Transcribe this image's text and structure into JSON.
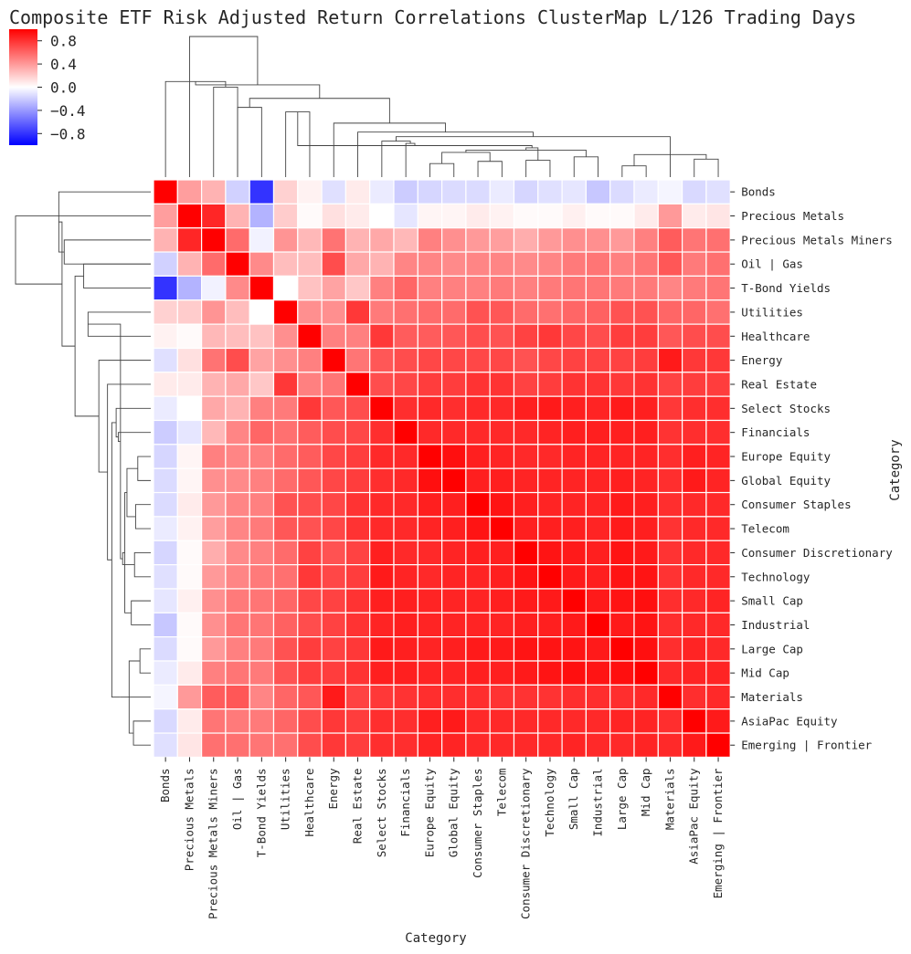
{
  "chart_data": {
    "type": "heatmap",
    "title": "Composite ETF Risk Adjusted Return Correlations ClusterMap L/126 Trading Days",
    "xlabel": "Category",
    "ylabel": "Category",
    "categories": [
      "Bonds",
      "Precious Metals",
      "Precious Metals Miners",
      "Oil | Gas",
      "T-Bond Yields",
      "Utilities",
      "Healthcare",
      "Energy",
      "Real Estate",
      "Select Stocks",
      "Financials",
      "Europe Equity",
      "Global Equity",
      "Consumer Staples",
      "Telecom",
      "Consumer Discretionary",
      "Technology",
      "Small Cap",
      "Industrial",
      "Large Cap",
      "Mid Cap",
      "Materials",
      "AsiaPac Equity",
      "Emerging | Frontier"
    ],
    "colorbar": {
      "vmin": -1.0,
      "vmax": 1.0,
      "ticks": [
        0.8,
        0.4,
        0.0,
        -0.4,
        -0.8
      ],
      "tick_labels": [
        "0.8",
        "0.4",
        "0.0",
        "−0.4",
        "−0.8"
      ],
      "colormap": "bwr",
      "low_color": "#0000ff",
      "mid_color": "#ffffff",
      "high_color": "#ff0000"
    },
    "grid_line_color": "#ffffff",
    "dendrogram_line_color": "#444444",
    "values": [
      [
        1.0,
        0.38,
        0.3,
        -0.18,
        -0.8,
        0.18,
        0.05,
        -0.12,
        0.08,
        -0.08,
        -0.2,
        -0.16,
        -0.14,
        -0.14,
        -0.08,
        -0.16,
        -0.12,
        -0.1,
        -0.22,
        -0.14,
        -0.08,
        -0.04,
        -0.15,
        -0.12
      ],
      [
        0.38,
        1.0,
        0.85,
        0.3,
        -0.3,
        0.2,
        0.02,
        0.12,
        0.08,
        0.0,
        -0.1,
        0.04,
        0.04,
        0.08,
        0.05,
        0.02,
        0.02,
        0.06,
        0.02,
        0.02,
        0.08,
        0.4,
        0.08,
        0.1
      ],
      [
        0.3,
        0.85,
        1.0,
        0.58,
        -0.05,
        0.42,
        0.28,
        0.55,
        0.3,
        0.34,
        0.28,
        0.5,
        0.44,
        0.4,
        0.38,
        0.32,
        0.4,
        0.44,
        0.44,
        0.4,
        0.5,
        0.64,
        0.54,
        0.56
      ],
      [
        -0.18,
        0.3,
        0.58,
        1.0,
        0.46,
        0.26,
        0.26,
        0.7,
        0.34,
        0.3,
        0.48,
        0.48,
        0.46,
        0.48,
        0.48,
        0.46,
        0.48,
        0.52,
        0.54,
        0.5,
        0.54,
        0.66,
        0.52,
        0.56
      ],
      [
        -0.8,
        -0.3,
        -0.05,
        0.46,
        1.0,
        0.0,
        0.24,
        0.36,
        0.22,
        0.5,
        0.6,
        0.5,
        0.5,
        0.5,
        0.52,
        0.5,
        0.52,
        0.54,
        0.54,
        0.52,
        0.52,
        0.48,
        0.52,
        0.54
      ],
      [
        0.18,
        0.2,
        0.42,
        0.26,
        0.0,
        1.0,
        0.44,
        0.44,
        0.78,
        0.52,
        0.56,
        0.58,
        0.58,
        0.68,
        0.66,
        0.58,
        0.56,
        0.6,
        0.62,
        0.68,
        0.68,
        0.6,
        0.6,
        0.56
      ],
      [
        0.05,
        0.02,
        0.28,
        0.26,
        0.24,
        0.44,
        1.0,
        0.5,
        0.5,
        0.78,
        0.64,
        0.64,
        0.66,
        0.7,
        0.68,
        0.74,
        0.78,
        0.72,
        0.7,
        0.76,
        0.76,
        0.66,
        0.7,
        0.7
      ],
      [
        -0.12,
        0.12,
        0.55,
        0.7,
        0.36,
        0.44,
        0.5,
        1.0,
        0.54,
        0.66,
        0.7,
        0.72,
        0.72,
        0.72,
        0.72,
        0.68,
        0.72,
        0.74,
        0.74,
        0.74,
        0.76,
        0.9,
        0.78,
        0.78
      ],
      [
        0.08,
        0.08,
        0.3,
        0.34,
        0.22,
        0.78,
        0.5,
        0.54,
        1.0,
        0.7,
        0.72,
        0.76,
        0.76,
        0.8,
        0.8,
        0.74,
        0.76,
        0.8,
        0.8,
        0.78,
        0.8,
        0.74,
        0.76,
        0.76
      ],
      [
        -0.08,
        0.0,
        0.34,
        0.3,
        0.5,
        0.52,
        0.78,
        0.66,
        0.7,
        1.0,
        0.82,
        0.84,
        0.82,
        0.84,
        0.84,
        0.88,
        0.9,
        0.88,
        0.86,
        0.9,
        0.88,
        0.78,
        0.82,
        0.82
      ],
      [
        -0.2,
        -0.1,
        0.28,
        0.48,
        0.6,
        0.56,
        0.64,
        0.7,
        0.72,
        0.82,
        1.0,
        0.84,
        0.84,
        0.84,
        0.84,
        0.84,
        0.86,
        0.88,
        0.88,
        0.88,
        0.88,
        0.8,
        0.82,
        0.82
      ],
      [
        -0.16,
        0.04,
        0.5,
        0.48,
        0.5,
        0.58,
        0.64,
        0.72,
        0.76,
        0.84,
        0.84,
        1.0,
        0.94,
        0.88,
        0.86,
        0.84,
        0.84,
        0.86,
        0.86,
        0.86,
        0.86,
        0.82,
        0.88,
        0.86
      ],
      [
        -0.14,
        0.04,
        0.44,
        0.46,
        0.5,
        0.58,
        0.66,
        0.72,
        0.76,
        0.82,
        0.84,
        0.94,
        1.0,
        0.88,
        0.88,
        0.86,
        0.86,
        0.86,
        0.86,
        0.88,
        0.86,
        0.82,
        0.9,
        0.86
      ],
      [
        -0.14,
        0.08,
        0.4,
        0.48,
        0.5,
        0.68,
        0.7,
        0.72,
        0.8,
        0.84,
        0.84,
        0.88,
        0.88,
        1.0,
        0.92,
        0.88,
        0.86,
        0.86,
        0.86,
        0.9,
        0.88,
        0.82,
        0.84,
        0.84
      ],
      [
        -0.08,
        0.05,
        0.38,
        0.48,
        0.52,
        0.66,
        0.68,
        0.72,
        0.8,
        0.84,
        0.84,
        0.86,
        0.88,
        0.92,
        1.0,
        0.88,
        0.88,
        0.88,
        0.86,
        0.9,
        0.88,
        0.8,
        0.84,
        0.84
      ],
      [
        -0.16,
        0.02,
        0.32,
        0.46,
        0.5,
        0.58,
        0.74,
        0.68,
        0.74,
        0.88,
        0.84,
        0.84,
        0.86,
        0.88,
        0.88,
        1.0,
        0.92,
        0.9,
        0.88,
        0.92,
        0.9,
        0.8,
        0.84,
        0.84
      ],
      [
        -0.12,
        0.02,
        0.4,
        0.48,
        0.52,
        0.56,
        0.78,
        0.72,
        0.76,
        0.9,
        0.86,
        0.84,
        0.86,
        0.86,
        0.88,
        0.92,
        1.0,
        0.9,
        0.88,
        0.92,
        0.92,
        0.8,
        0.84,
        0.84
      ],
      [
        -0.1,
        0.06,
        0.44,
        0.52,
        0.54,
        0.6,
        0.72,
        0.74,
        0.8,
        0.88,
        0.88,
        0.86,
        0.86,
        0.86,
        0.88,
        0.9,
        0.9,
        1.0,
        0.9,
        0.92,
        0.94,
        0.82,
        0.84,
        0.86
      ],
      [
        -0.22,
        0.02,
        0.44,
        0.54,
        0.54,
        0.62,
        0.7,
        0.74,
        0.8,
        0.86,
        0.88,
        0.86,
        0.86,
        0.86,
        0.86,
        0.88,
        0.88,
        0.9,
        1.0,
        0.9,
        0.92,
        0.82,
        0.84,
        0.84
      ],
      [
        -0.14,
        0.02,
        0.4,
        0.5,
        0.52,
        0.68,
        0.76,
        0.74,
        0.78,
        0.9,
        0.88,
        0.86,
        0.88,
        0.9,
        0.9,
        0.92,
        0.92,
        0.92,
        0.9,
        1.0,
        0.94,
        0.82,
        0.86,
        0.84
      ],
      [
        -0.08,
        0.08,
        0.5,
        0.54,
        0.52,
        0.68,
        0.76,
        0.76,
        0.8,
        0.88,
        0.88,
        0.86,
        0.86,
        0.88,
        0.88,
        0.9,
        0.92,
        0.94,
        0.92,
        0.94,
        1.0,
        0.84,
        0.86,
        0.86
      ],
      [
        -0.04,
        0.4,
        0.64,
        0.66,
        0.48,
        0.6,
        0.66,
        0.9,
        0.74,
        0.78,
        0.8,
        0.82,
        0.82,
        0.82,
        0.8,
        0.8,
        0.8,
        0.82,
        0.82,
        0.82,
        0.84,
        1.0,
        0.82,
        0.84
      ],
      [
        -0.15,
        0.08,
        0.54,
        0.52,
        0.52,
        0.6,
        0.7,
        0.78,
        0.76,
        0.82,
        0.82,
        0.88,
        0.9,
        0.84,
        0.84,
        0.84,
        0.84,
        0.84,
        0.84,
        0.86,
        0.86,
        0.82,
        1.0,
        0.9
      ],
      [
        -0.12,
        0.1,
        0.56,
        0.56,
        0.54,
        0.56,
        0.7,
        0.78,
        0.76,
        0.82,
        0.82,
        0.86,
        0.86,
        0.84,
        0.84,
        0.84,
        0.84,
        0.86,
        0.84,
        0.84,
        0.86,
        0.84,
        0.9,
        1.0
      ]
    ],
    "dendrogram": {
      "leaf_order": [
        "Bonds",
        "Precious Metals",
        "Precious Metals Miners",
        "Oil | Gas",
        "T-Bond Yields",
        "Utilities",
        "Healthcare",
        "Energy",
        "Real Estate",
        "Select Stocks",
        "Financials",
        "Europe Equity",
        "Global Equity",
        "Consumer Staples",
        "Telecom",
        "Consumer Discretionary",
        "Technology",
        "Small Cap",
        "Industrial",
        "Large Cap",
        "Mid Cap",
        "Materials",
        "AsiaPac Equity",
        "Emerging | Frontier"
      ],
      "merges": [
        [
          2,
          3,
          0.8,
          2
        ],
        [
          0,
          24,
          0.85,
          3
        ],
        [
          3,
          4,
          0.62,
          2
        ],
        [
          5,
          6,
          0.58,
          2
        ],
        [
          11,
          12,
          0.12,
          2
        ],
        [
          13,
          14,
          0.14,
          2
        ],
        [
          15,
          16,
          0.15,
          2
        ],
        [
          17,
          18,
          0.18,
          2
        ],
        [
          19,
          20,
          0.1,
          2
        ],
        [
          22,
          23,
          0.16,
          2
        ],
        [
          32,
          33,
          0.2,
          4
        ],
        [
          28,
          29,
          0.22,
          4
        ],
        [
          31,
          35,
          0.24,
          6
        ],
        [
          30,
          36,
          0.26,
          8
        ],
        [
          27,
          37,
          0.28,
          10
        ],
        [
          10,
          38,
          0.3,
          11
        ],
        [
          9,
          39,
          0.32,
          12
        ],
        [
          21,
          34,
          0.28,
          3
        ],
        [
          40,
          41,
          0.36,
          15
        ],
        [
          8,
          42,
          0.4,
          16
        ],
        [
          7,
          43,
          0.48,
          17
        ],
        [
          26,
          44,
          0.7,
          19
        ],
        [
          25,
          45,
          0.82,
          21
        ],
        [
          1,
          46,
          1.25,
          24
        ]
      ]
    }
  }
}
